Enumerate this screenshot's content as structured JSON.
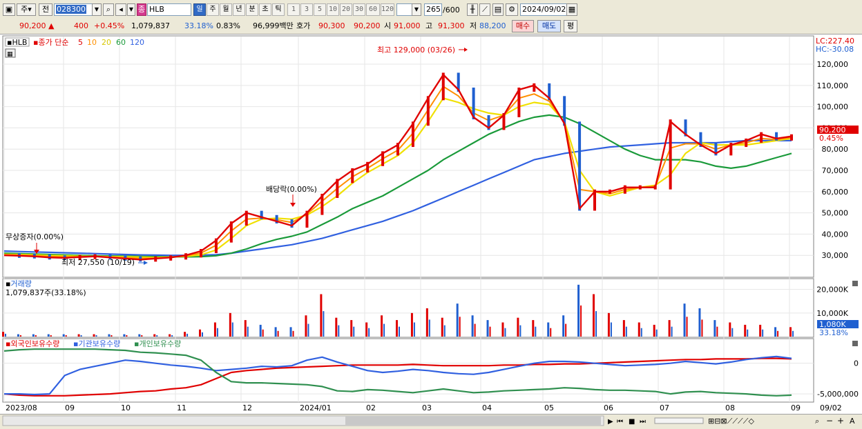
{
  "toolbar": {
    "type_label": "주",
    "prev_label": "전",
    "code": "028300",
    "stock_mark": "종",
    "stock_name": "HLB",
    "periods": [
      "일",
      "주",
      "월",
      "년",
      "분",
      "초",
      "틱"
    ],
    "active_period": "일",
    "ticks": [
      "1",
      "3",
      "5",
      "10",
      "20",
      "30",
      "60",
      "120"
    ],
    "count": "265",
    "count_total": "/600",
    "date": "2024/09/02"
  },
  "quote": {
    "price": "90,200",
    "change": "400",
    "change_pct": "+0.45%",
    "volume": "1,079,837",
    "volume_ratio": "33.18%",
    "turnover": "0.83%",
    "amount": "96,999백만",
    "bid_label": "호가",
    "bid1": "90,300",
    "bid2": "90,200",
    "open_label": "시",
    "open": "91,000",
    "high_label": "고",
    "high": "91,300",
    "low_label": "저",
    "low": "88,200",
    "buy": "매수",
    "sell": "매도",
    "eval": "평"
  },
  "legend": {
    "name": "HLB",
    "ma_title": "종가 단순",
    "ma": [
      {
        "period": "5",
        "color": "#e00000"
      },
      {
        "period": "10",
        "color": "#ff9000"
      },
      {
        "period": "20",
        "color": "#f0e000"
      },
      {
        "period": "60",
        "color": "#1a9a3a"
      },
      {
        "period": "120",
        "color": "#3060e0"
      }
    ]
  },
  "corner": {
    "lc": "LC:227.40",
    "hc": "HC:-30.08"
  },
  "annotations": {
    "high": "최고 129,000 (03/26)",
    "low": "최저 27,550 (10/19)",
    "dividend": "배당락(0.00%)",
    "bonus": "무상증자(0.00%)"
  },
  "price_tag": {
    "price": "90,200",
    "pct": "0.45%"
  },
  "volume_panel": {
    "title": "거래량",
    "value": "1,079,837주(33.18%)",
    "tag": "1,080K",
    "tag_pct": "33.18%"
  },
  "holdings_panel": {
    "items": [
      "외국인보유수량",
      "기관보유수량",
      "개인보유수량"
    ]
  },
  "colors": {
    "up": "#e00000",
    "down": "#1f5fd0",
    "foreign": "#e00000",
    "inst": "#3060e0",
    "indiv": "#2f8f4f"
  },
  "chart_data": [
    {
      "type": "line",
      "series": [
        {
          "name": "5",
          "values": [
            30000,
            29800,
            29500,
            29000,
            28800,
            29200,
            29500,
            29000,
            28500,
            28000,
            28500,
            29000,
            30000,
            32000,
            37000,
            45000,
            50000,
            48000,
            46000,
            44000,
            50000,
            58000,
            65000,
            70000,
            73000,
            78000,
            82000,
            92000,
            104000,
            115000,
            108000,
            95000,
            90000,
            96000,
            108000,
            110000,
            104000,
            92000,
            52000,
            60000,
            60000,
            62000,
            62000,
            62000,
            93000,
            87000,
            82000,
            78000,
            82000,
            84000,
            87000,
            85000,
            86000
          ]
        },
        {
          "name": "20",
          "values": [
            30500,
            30400,
            30200,
            30000,
            29800,
            29600,
            29500,
            29400,
            29300,
            29200,
            29000,
            29200,
            29500,
            30200,
            32500,
            38000,
            44000,
            47000,
            47500,
            47000,
            49000,
            53000,
            58000,
            64000,
            69000,
            73000,
            77000,
            83000,
            93000,
            104000,
            102000,
            99000,
            97000,
            96000,
            100000,
            102000,
            101000,
            93000,
            70000,
            60000,
            58000,
            60000,
            62000,
            63000,
            68000,
            78000,
            83000,
            82000,
            82000,
            82000,
            83000,
            84000,
            85000
          ]
        },
        {
          "name": "60",
          "values": [
            31000,
            30800,
            30600,
            30400,
            30200,
            30000,
            29800,
            29700,
            29600,
            29500,
            29400,
            29300,
            29300,
            29400,
            29800,
            31000,
            33000,
            35500,
            37500,
            39000,
            41000,
            44500,
            48000,
            52000,
            55000,
            58000,
            62000,
            66000,
            70000,
            75000,
            79000,
            83000,
            87000,
            90000,
            93000,
            95000,
            96000,
            95000,
            92000,
            88000,
            84000,
            80000,
            77000,
            75000,
            75000,
            75000,
            74000,
            72000,
            71000,
            72000,
            74000,
            76000,
            78000
          ]
        },
        {
          "name": "120",
          "values": [
            32000,
            31800,
            31600,
            31400,
            31200,
            31000,
            30800,
            30600,
            30400,
            30200,
            30100,
            30000,
            30000,
            30100,
            30300,
            31000,
            32000,
            33000,
            34000,
            35000,
            36500,
            38000,
            40000,
            42000,
            44000,
            46000,
            48500,
            51000,
            54000,
            57000,
            60000,
            63000,
            66000,
            69000,
            72000,
            75000,
            76500,
            78000,
            79000,
            80000,
            81000,
            81500,
            82000,
            82500,
            83000,
            83000,
            83000,
            83000,
            83500,
            84000,
            84000,
            84000,
            84000
          ]
        }
      ],
      "ylim": [
        20000,
        133000
      ],
      "yticks": [
        "120,000",
        "110,000",
        "100,000",
        "90,000",
        "80,000",
        "70,000",
        "60,000",
        "50,000",
        "40,000",
        "30,000"
      ]
    },
    {
      "type": "bar",
      "title": "거래량",
      "values": [
        2,
        1,
        1,
        1,
        1,
        1,
        1,
        1,
        1,
        1,
        1,
        1,
        2,
        3,
        6,
        10,
        7,
        5,
        4,
        4,
        9,
        18,
        8,
        7,
        6,
        9,
        7,
        10,
        12,
        8,
        14,
        9,
        7,
        6,
        8,
        7,
        6,
        9,
        22,
        18,
        10,
        7,
        6,
        5,
        7,
        14,
        12,
        7,
        6,
        5,
        5,
        4,
        4
      ],
      "yticks": [
        "20,000K",
        "10,000K"
      ]
    },
    {
      "type": "line",
      "series": [
        {
          "name": "외국인보유수량",
          "values": [
            -5.0,
            -5.2,
            -5.3,
            -5.3,
            -5.3,
            -5.2,
            -5.1,
            -5.0,
            -4.8,
            -4.6,
            -4.5,
            -4.2,
            -4.0,
            -3.5,
            -2.5,
            -1.5,
            -1.2,
            -1.0,
            -0.8,
            -0.7,
            -0.6,
            -0.5,
            -0.4,
            -0.3,
            -0.3,
            -0.3,
            -0.3,
            -0.2,
            -0.3,
            -0.4,
            -0.4,
            -0.4,
            -0.4,
            -0.3,
            -0.3,
            -0.2,
            -0.2,
            -0.1,
            -0.1,
            0.0,
            0.1,
            0.2,
            0.3,
            0.4,
            0.5,
            0.6,
            0.6,
            0.7,
            0.7,
            0.7,
            0.8,
            0.8,
            0.7
          ]
        },
        {
          "name": "기관보유수량",
          "values": [
            -5.0,
            -5.0,
            -5.1,
            -5.0,
            -2.0,
            -1.0,
            -0.5,
            0.0,
            0.5,
            0.3,
            0.0,
            -0.3,
            -0.5,
            -0.8,
            -1.2,
            -1.0,
            -0.8,
            -0.5,
            -0.6,
            -0.4,
            0.5,
            1.0,
            0.2,
            -0.5,
            -1.2,
            -1.5,
            -1.3,
            -1.0,
            -1.2,
            -1.5,
            -1.7,
            -1.8,
            -1.5,
            -1.0,
            -0.5,
            0.0,
            0.3,
            0.3,
            0.2,
            0.0,
            -0.2,
            -0.4,
            -0.3,
            -0.2,
            0.0,
            0.3,
            0.1,
            -0.1,
            0.2,
            0.6,
            0.9,
            1.1,
            0.8
          ]
        },
        {
          "name": "개인보유수량",
          "values": [
            2.0,
            2.2,
            2.3,
            2.3,
            2.3,
            2.3,
            2.3,
            2.2,
            2.1,
            1.8,
            1.7,
            1.5,
            1.3,
            0.5,
            -1.5,
            -3.0,
            -3.2,
            -3.2,
            -3.3,
            -3.4,
            -3.5,
            -3.8,
            -4.5,
            -4.6,
            -4.3,
            -4.4,
            -4.6,
            -4.8,
            -4.5,
            -4.2,
            -4.5,
            -4.8,
            -4.7,
            -4.5,
            -4.4,
            -4.3,
            -4.2,
            -4.0,
            -4.1,
            -4.3,
            -4.4,
            -4.4,
            -4.5,
            -4.6,
            -5.0,
            -4.7,
            -4.6,
            -4.8,
            -4.9,
            -5.0,
            -5.2,
            -5.3,
            -5.2
          ]
        }
      ],
      "yticks": [
        "0",
        "-5,000,000"
      ]
    }
  ],
  "xaxis": {
    "labels": [
      "2023/08",
      "09",
      "10",
      "11",
      "12",
      "2024/01",
      "02",
      "03",
      "04",
      "05",
      "06",
      "07",
      "08",
      "09"
    ],
    "right_label": "09/02"
  }
}
